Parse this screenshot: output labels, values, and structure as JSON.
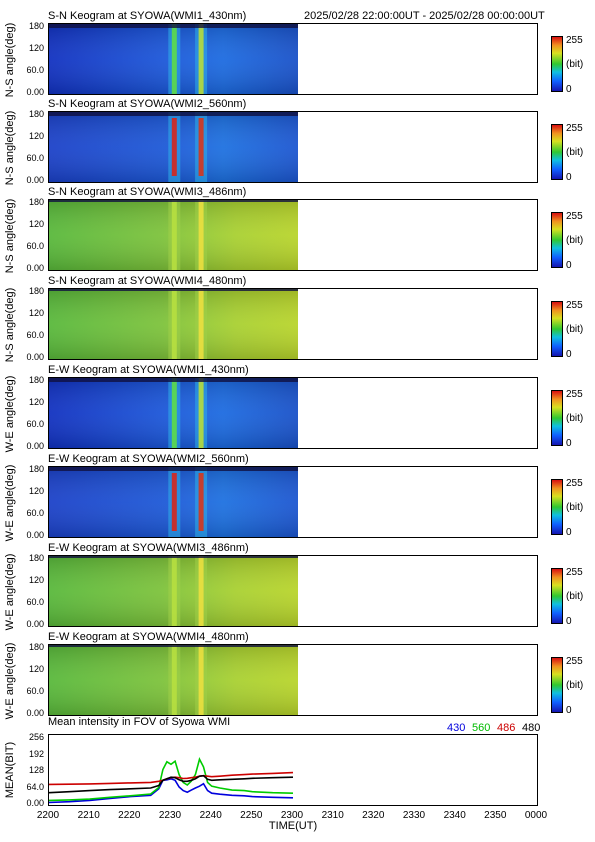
{
  "chart_data": [
    {
      "type": "heatmap",
      "title": "S-N Keogram at SYOWA(WMI1_430nm)",
      "ylabel": "N-S angle(deg)",
      "y_ticks": [
        "180",
        "120",
        "60.0",
        "0.00"
      ],
      "colorbar": {
        "max": "255",
        "unit": "(bit)",
        "min": "0"
      },
      "data_end": "2301",
      "bright_arcs_ut": [
        "2231",
        "2237"
      ],
      "style": "blue"
    },
    {
      "type": "heatmap",
      "title": "S-N Keogram at SYOWA(WMI2_560nm)",
      "ylabel": "N-S angle(deg)",
      "y_ticks": [
        "180",
        "120",
        "60.0",
        "0.00"
      ],
      "colorbar": {
        "max": "255",
        "unit": "(bit)",
        "min": "0"
      },
      "data_end": "2301",
      "bright_arcs_ut": [
        "2231",
        "2237"
      ],
      "style": "redarc"
    },
    {
      "type": "heatmap",
      "title": "S-N Keogram at SYOWA(WMI3_486nm)",
      "ylabel": "N-S angle(deg)",
      "y_ticks": [
        "180",
        "120",
        "60.0",
        "0.00"
      ],
      "colorbar": {
        "max": "255",
        "unit": "(bit)",
        "min": "0"
      },
      "data_end": "2301",
      "bright_arcs_ut": [
        "2231",
        "2237"
      ],
      "style": "green"
    },
    {
      "type": "heatmap",
      "title": "S-N Keogram at SYOWA(WMI4_480nm)",
      "ylabel": "N-S angle(deg)",
      "y_ticks": [
        "180",
        "120",
        "60.0",
        "0.00"
      ],
      "colorbar": {
        "max": "255",
        "unit": "(bit)",
        "min": "0"
      },
      "data_end": "2301",
      "bright_arcs_ut": [
        "2231",
        "2237"
      ],
      "style": "green"
    },
    {
      "type": "heatmap",
      "title": "E-W Keogram at SYOWA(WMI1_430nm)",
      "ylabel": "W-E angle(deg)",
      "y_ticks": [
        "180",
        "120",
        "60.0",
        "0.00"
      ],
      "colorbar": {
        "max": "255",
        "unit": "(bit)",
        "min": "0"
      },
      "data_end": "2301",
      "bright_arcs_ut": [
        "2231",
        "2237"
      ],
      "style": "blue"
    },
    {
      "type": "heatmap",
      "title": "E-W Keogram at SYOWA(WMI2_560nm)",
      "ylabel": "W-E angle(deg)",
      "y_ticks": [
        "180",
        "120",
        "60.0",
        "0.00"
      ],
      "colorbar": {
        "max": "255",
        "unit": "(bit)",
        "min": "0"
      },
      "data_end": "2301",
      "bright_arcs_ut": [
        "2231",
        "2237"
      ],
      "style": "redarc"
    },
    {
      "type": "heatmap",
      "title": "E-W Keogram at SYOWA(WMI3_486nm)",
      "ylabel": "W-E angle(deg)",
      "y_ticks": [
        "180",
        "120",
        "60.0",
        "0.00"
      ],
      "colorbar": {
        "max": "255",
        "unit": "(bit)",
        "min": "0"
      },
      "data_end": "2301",
      "bright_arcs_ut": [
        "2231",
        "2237"
      ],
      "style": "green"
    },
    {
      "type": "heatmap",
      "title": "E-W Keogram at SYOWA(WMI4_480nm)",
      "ylabel": "W-E angle(deg)",
      "y_ticks": [
        "180",
        "120",
        "60.0",
        "0.00"
      ],
      "colorbar": {
        "max": "255",
        "unit": "(bit)",
        "min": "0"
      },
      "data_end": "2301",
      "bright_arcs_ut": [
        "2231",
        "2237"
      ],
      "style": "green"
    },
    {
      "type": "line",
      "title": "Mean intensity in FOV of Syowa WMI",
      "ylabel": "MEAN(BIT)",
      "xlabel": "TIME(UT)",
      "ylim": [
        0,
        256
      ],
      "y_ticks": [
        "256",
        "192",
        "128",
        "64.0",
        "0.00"
      ],
      "x_ticks": [
        "2200",
        "2210",
        "2220",
        "2230",
        "2240",
        "2250",
        "2300",
        "2310",
        "2320",
        "2330",
        "2340",
        "2350",
        "0000"
      ],
      "x_minutes": [
        0,
        5,
        10,
        15,
        20,
        25,
        27,
        28,
        29,
        30,
        31,
        32,
        33,
        34,
        35,
        36,
        37,
        38,
        39,
        40,
        42,
        45,
        48,
        50,
        55,
        60
      ],
      "series": [
        {
          "name": "430",
          "color": "#0000dd",
          "values": [
            2,
            5,
            10,
            18,
            25,
            30,
            55,
            88,
            90,
            94,
            88,
            62,
            48,
            42,
            50,
            58,
            65,
            75,
            48,
            38,
            34,
            30,
            28,
            25,
            22,
            20
          ]
        },
        {
          "name": "560",
          "color": "#00cc00",
          "values": [
            10,
            12,
            15,
            22,
            28,
            35,
            60,
            130,
            160,
            150,
            162,
            110,
            80,
            70,
            85,
            110,
            170,
            140,
            80,
            65,
            58,
            50,
            48,
            44,
            40,
            38
          ]
        },
        {
          "name": "486",
          "color": "#cc0000",
          "values": [
            72,
            73,
            74,
            76,
            78,
            80,
            84,
            88,
            94,
            98,
            100,
            98,
            95,
            96,
            98,
            100,
            104,
            106,
            104,
            102,
            104,
            108,
            110,
            112,
            115,
            118
          ]
        },
        {
          "name": "480",
          "color": "#000000",
          "values": [
            40,
            44,
            48,
            52,
            55,
            58,
            68,
            88,
            94,
            100,
            98,
            90,
            84,
            84,
            88,
            94,
            104,
            106,
            92,
            88,
            90,
            92,
            94,
            96,
            98,
            100
          ]
        }
      ]
    }
  ],
  "header": {
    "range": "2025/02/28 22:00:00UT - 2025/02/28 00:00:00UT"
  }
}
